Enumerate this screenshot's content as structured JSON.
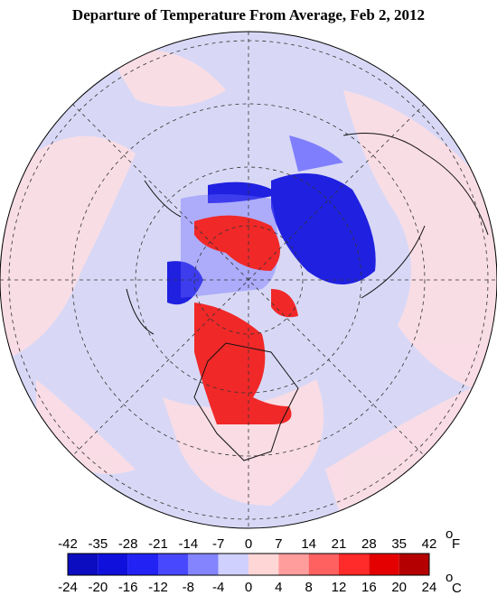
{
  "header": {
    "title": "Departure of Temperature From Average, Feb 2, 2012"
  },
  "colorbar": {
    "colors": [
      "#0c0cc0",
      "#1010dc",
      "#2222f5",
      "#4848ff",
      "#8484ff",
      "#d0d0ff",
      "#ffd6d6",
      "#ff9c9c",
      "#ff6060",
      "#ff2a2a",
      "#e40000",
      "#b40000"
    ],
    "fahrenheit_labels": [
      -42,
      -35,
      -28,
      -21,
      -14,
      -7,
      0,
      7,
      14,
      21,
      28,
      35,
      42
    ],
    "celsius_labels": [
      -24,
      -20,
      -16,
      -12,
      -8,
      -4,
      0,
      4,
      8,
      12,
      16,
      20,
      24
    ],
    "fahrenheit_unit": {
      "degree": "o",
      "unit": "F"
    },
    "celsius_unit": {
      "degree": "o",
      "unit": "C"
    }
  }
}
